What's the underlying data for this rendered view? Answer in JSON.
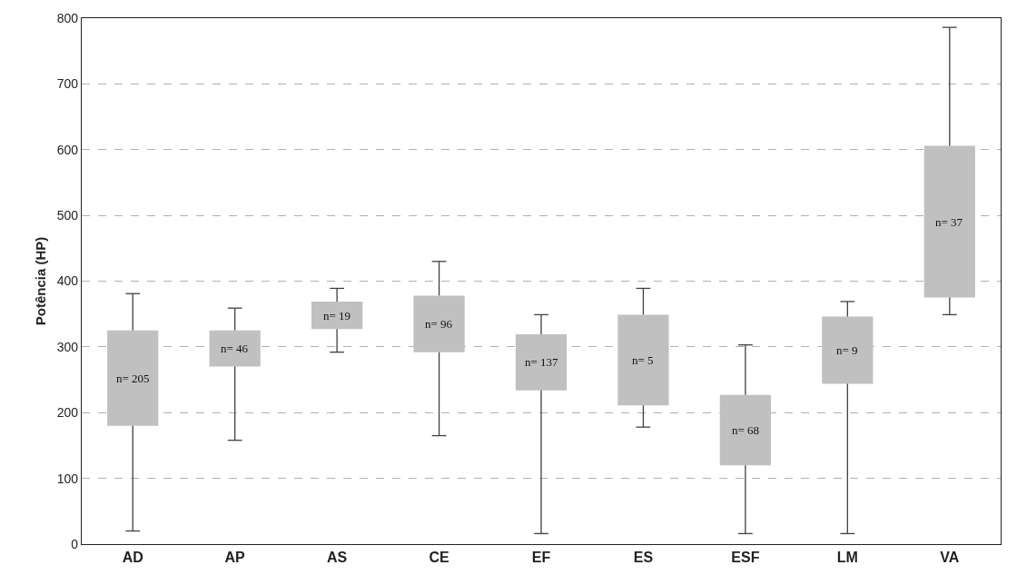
{
  "chart_data": {
    "type": "box",
    "ylabel": "Potência (HP)",
    "categories": [
      "AD",
      "AP",
      "AS",
      "CE",
      "EF",
      "ES",
      "ESF",
      "LM",
      "VA"
    ],
    "boxes": [
      {
        "low": 20,
        "q1": 180,
        "q3": 325,
        "high": 381
      },
      {
        "low": 158,
        "q1": 270,
        "q3": 325,
        "high": 359
      },
      {
        "low": 292,
        "q1": 327,
        "q3": 369,
        "high": 389
      },
      {
        "low": 165,
        "q1": 292,
        "q3": 378,
        "high": 430
      },
      {
        "low": 16,
        "q1": 234,
        "q3": 319,
        "high": 349
      },
      {
        "low": 178,
        "q1": 211,
        "q3": 349,
        "high": 389
      },
      {
        "low": 16,
        "q1": 120,
        "q3": 227,
        "high": 303
      },
      {
        "low": 16,
        "q1": 244,
        "q3": 346,
        "high": 369
      },
      {
        "low": 349,
        "q1": 375,
        "q3": 606,
        "high": 786
      }
    ],
    "color": "#c0c0c0",
    "ylim": [
      0,
      800
    ],
    "yticks": [
      0,
      100,
      200,
      300,
      400,
      500,
      600,
      700,
      800
    ],
    "grid": "y",
    "annotations": [
      "n= 205",
      "n= 46",
      "n= 19",
      "n= 96",
      "n= 137",
      "n= 5",
      "n= 68",
      "n= 9",
      "n= 37"
    ]
  }
}
